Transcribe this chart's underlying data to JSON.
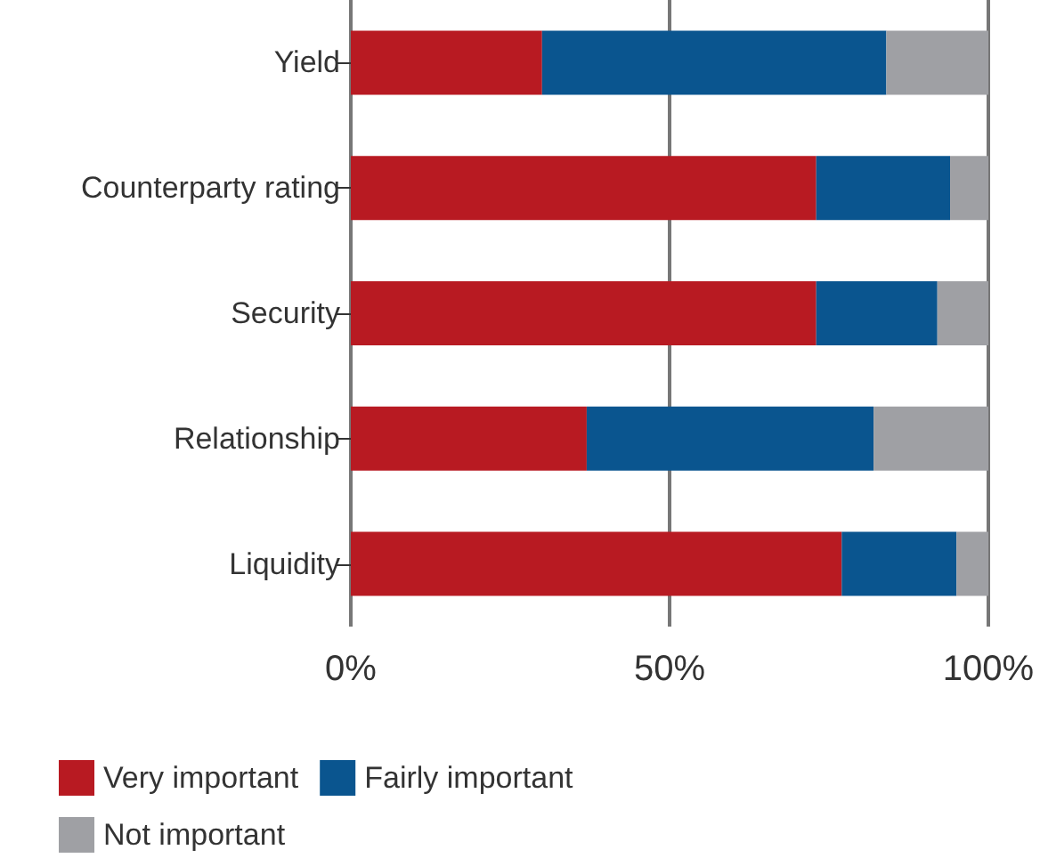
{
  "chart_data": {
    "type": "bar",
    "orientation": "horizontal",
    "stacked": true,
    "categories": [
      "Yield",
      "Counterparty rating",
      "Security",
      "Relationship",
      "Liquidity"
    ],
    "series": [
      {
        "name": "Very important",
        "color": "#b81a22",
        "values": [
          30,
          73,
          73,
          37,
          77
        ]
      },
      {
        "name": "Fairly important",
        "color": "#0a558f",
        "values": [
          54,
          21,
          19,
          45,
          18
        ]
      },
      {
        "name": "Not important",
        "color": "#9fa0a4",
        "values": [
          16,
          6,
          8,
          18,
          5
        ]
      }
    ],
    "xlim": [
      0,
      100
    ],
    "xticks": [
      {
        "value": 0,
        "label": "0%"
      },
      {
        "value": 50,
        "label": "50%"
      },
      {
        "value": 100,
        "label": "100%"
      }
    ],
    "grid": "x",
    "legend": "bottom left"
  }
}
